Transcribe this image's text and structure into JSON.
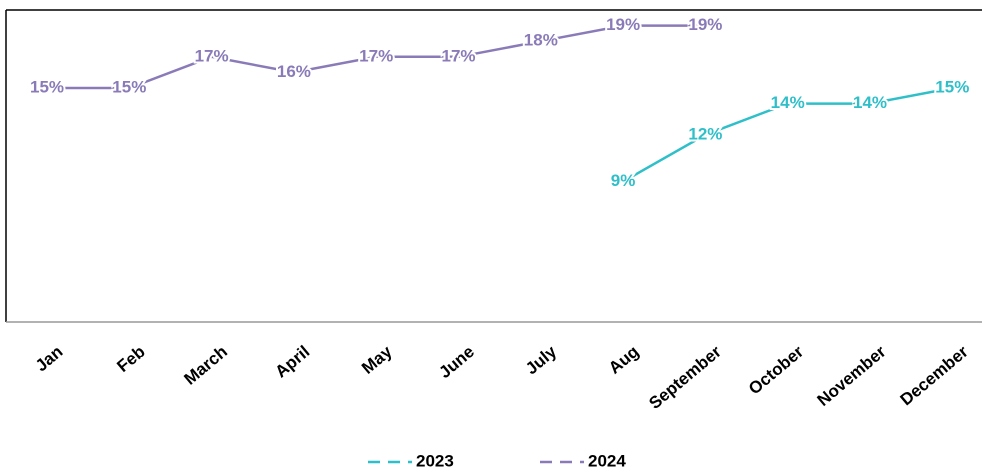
{
  "chart_data": {
    "type": "line",
    "categories": [
      "Jan",
      "Feb",
      "March",
      "April",
      "May",
      "June",
      "July",
      "Aug",
      "September",
      "October",
      "November",
      "December"
    ],
    "series": [
      {
        "name": "2023",
        "color": "#2fbfc9",
        "values": [
          null,
          null,
          null,
          null,
          null,
          null,
          null,
          9,
          12,
          14,
          14,
          15
        ],
        "value_labels": [
          null,
          null,
          null,
          null,
          null,
          null,
          null,
          "9%",
          "12%",
          "14%",
          "14%",
          "15%"
        ]
      },
      {
        "name": "2024",
        "color": "#8a7bb8",
        "values": [
          15,
          15,
          17,
          16,
          17,
          17,
          18,
          19,
          19,
          null,
          null,
          null
        ],
        "value_labels": [
          "15%",
          "15%",
          "17%",
          "16%",
          "17%",
          "17%",
          "18%",
          "19%",
          "19%",
          null,
          null,
          null
        ]
      }
    ],
    "ylim": [
      0,
      20
    ],
    "legend": "bottom"
  }
}
